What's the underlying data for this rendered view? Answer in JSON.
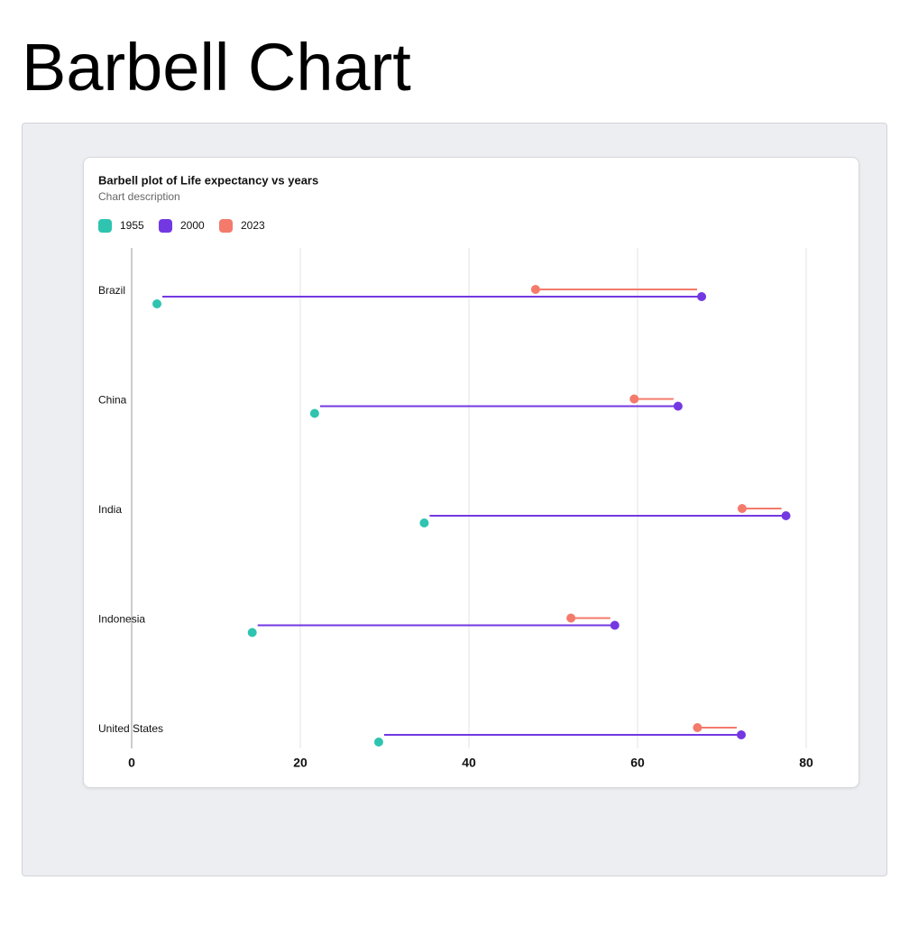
{
  "title": "Barbell Chart",
  "chart_data": {
    "type": "barbell",
    "title": "Barbell plot of Life expectancy vs years",
    "subtitle": "Chart description",
    "categories": [
      "Brazil",
      "China",
      "India",
      "Indonesia",
      "United States"
    ],
    "series": [
      {
        "name": "1955",
        "color": "#2ec4b0",
        "values": [
          3.0,
          21.7,
          34.7,
          14.3,
          29.3
        ]
      },
      {
        "name": "2000",
        "color": "#7338e2",
        "values": [
          67.6,
          64.8,
          77.6,
          57.3,
          72.3
        ]
      },
      {
        "name": "2023",
        "color": "#f47a6b",
        "values": [
          47.9,
          59.6,
          72.4,
          52.1,
          67.1
        ]
      }
    ],
    "xlim": [
      0,
      80
    ],
    "xticks": [
      0,
      20,
      40,
      60,
      80
    ],
    "grid": true
  }
}
